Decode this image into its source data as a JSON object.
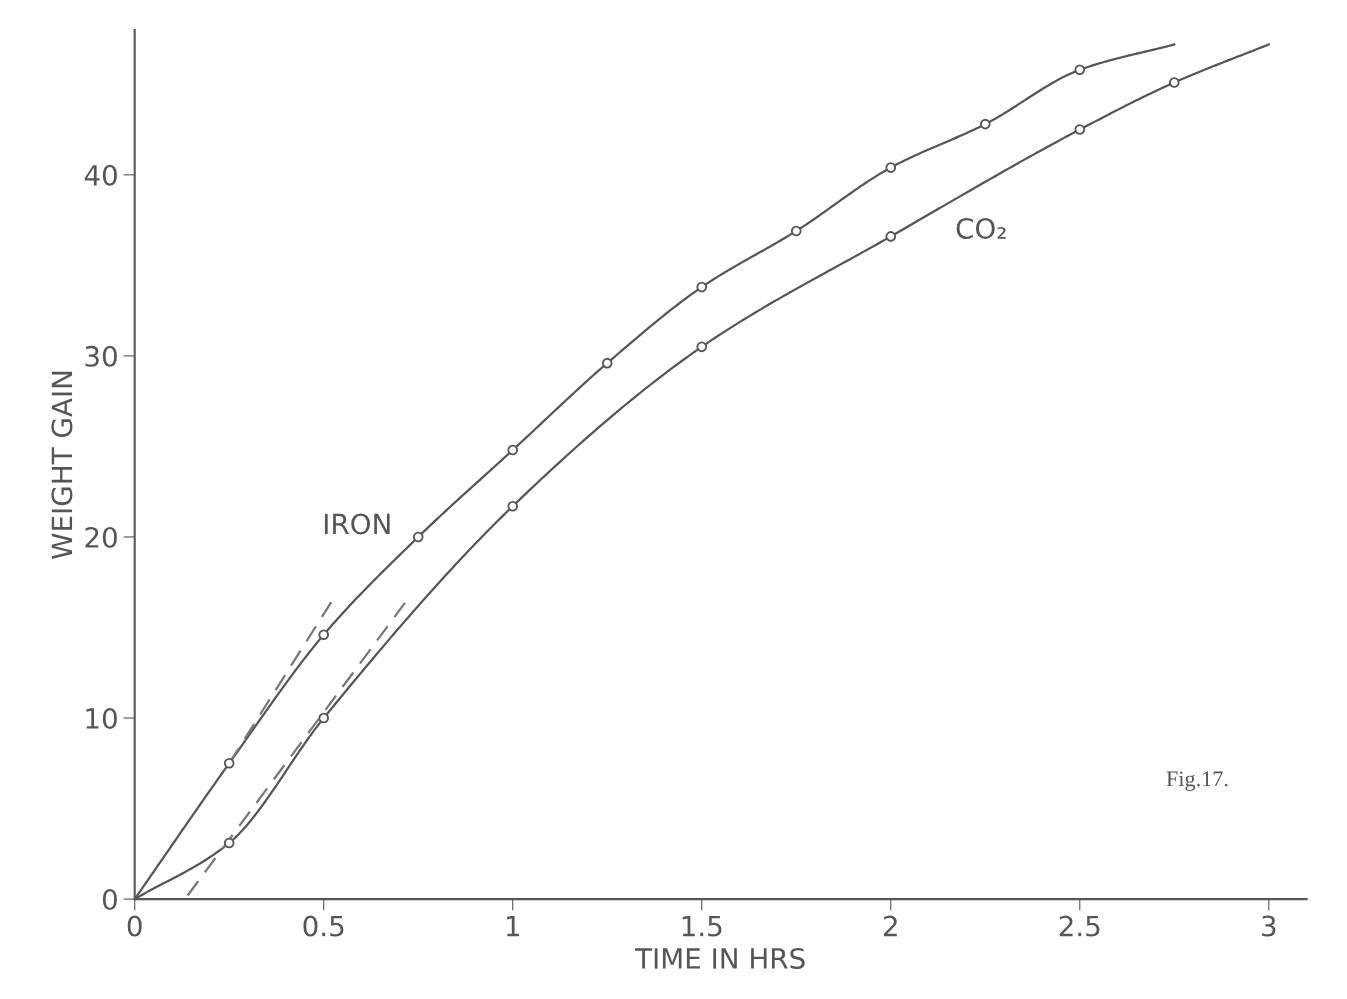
{
  "chart_data": {
    "type": "line",
    "xlabel": "TIME IN HRS",
    "ylabel": "WEIGHT GAIN",
    "xlim": [
      0,
      3.1
    ],
    "ylim": [
      0,
      48
    ],
    "xticks": [
      0,
      0.5,
      {
        "value": 1,
        "label": "1"
      },
      1.5,
      2,
      2.5,
      3
    ],
    "yticks": [
      0,
      10,
      20,
      30,
      40
    ],
    "grid": false,
    "series": [
      {
        "name": "IRON",
        "color": "#555555",
        "marker": "none",
        "line_style": "solid",
        "x": [
          0,
          0.25,
          0.5,
          0.75,
          1,
          1.25,
          1.5,
          1.75,
          2,
          2.25,
          2.5,
          2.75
        ],
        "values": [
          0,
          7.5,
          14.6,
          20.0,
          24.8,
          29.6,
          33.8,
          36.9,
          40.4,
          42.8,
          45.8,
          47.2
        ]
      },
      {
        "type": "scatter",
        "color": "#555555",
        "marker": "circle",
        "x": [
          0.25,
          0.5,
          0.75,
          1,
          1.25,
          1.5,
          1.75,
          2,
          2.25,
          2.5
        ],
        "values": [
          7.5,
          14.6,
          20.0,
          24.8,
          29.6,
          33.8,
          36.9,
          40.4,
          42.8,
          45.8
        ]
      },
      {
        "name": "CO₂",
        "type": "line",
        "color": "#555555",
        "marker": "none",
        "line_style": "solid",
        "x": [
          0,
          0.25,
          0.5,
          1,
          1.5,
          2,
          2.5,
          2.75,
          3
        ],
        "values": [
          0,
          3.1,
          10.0,
          21.7,
          30.5,
          36.6,
          42.5,
          45.1,
          47.2
        ]
      },
      {
        "type": "scatter",
        "color": "#555555",
        "marker": "circle",
        "x": [
          0.25,
          0.5,
          1,
          1.5,
          2,
          2.5,
          2.75
        ],
        "values": [
          3.1,
          10.0,
          21.7,
          30.5,
          36.6,
          42.5,
          45.1
        ]
      },
      {
        "type": "line",
        "color": "#777777",
        "marker": "none",
        "line_style": "dashed",
        "x": [
          0.25,
          0.52
        ],
        "values": [
          7.5,
          16.4
        ]
      },
      {
        "type": "line",
        "color": "#777777",
        "marker": "none",
        "line_style": "dashed",
        "x": [
          0.14,
          0.72
        ],
        "values": [
          0.2,
          16.5
        ]
      }
    ],
    "annotations": [
      "Fig.17."
    ]
  }
}
